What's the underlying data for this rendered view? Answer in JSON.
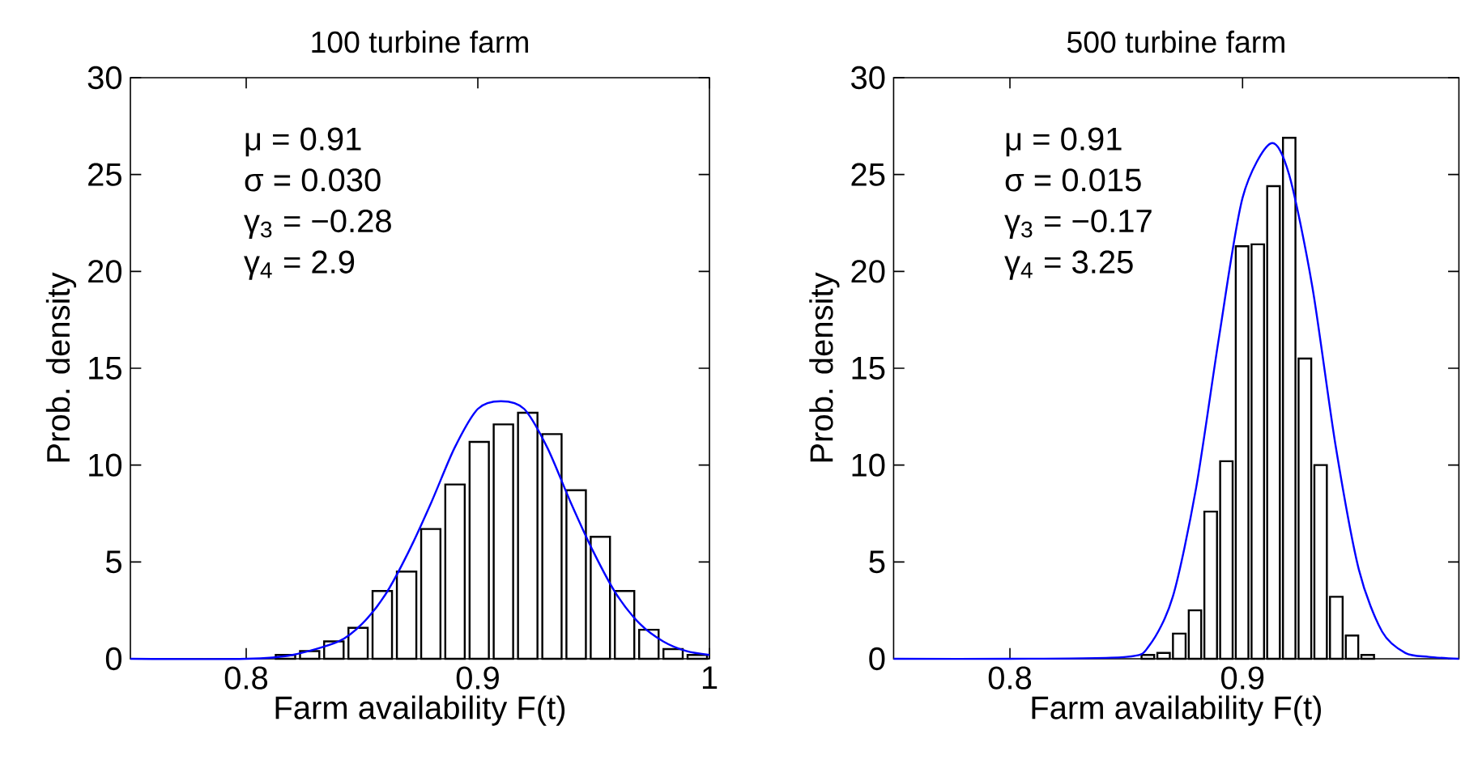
{
  "chart_data": [
    {
      "type": "histogram",
      "title": "100 turbine farm",
      "xlabel": "Farm availability F(t)",
      "ylabel": "Prob. density",
      "color": "#ffffff",
      "bins": [
        0.8117,
        0.8222,
        0.8326,
        0.8431,
        0.8535,
        0.864,
        0.8745,
        0.8849,
        0.8954,
        0.9058,
        0.9163,
        0.9268,
        0.9372,
        0.9477,
        0.9581,
        0.9686,
        0.9791,
        0.9895,
        1.0
      ],
      "values": [
        0.2,
        0.4,
        0.9,
        1.6,
        3.5,
        4.5,
        6.7,
        9.0,
        11.2,
        12.1,
        12.7,
        11.6,
        8.7,
        6.3,
        3.5,
        1.5,
        0.5,
        0.2
      ],
      "series": [
        {
          "type": "line",
          "color": "#0000ff",
          "x": [
            0.75,
            0.8,
            0.82,
            0.84,
            0.85,
            0.86,
            0.87,
            0.88,
            0.89,
            0.9,
            0.91,
            0.92,
            0.93,
            0.94,
            0.95,
            0.96,
            0.97,
            0.98,
            0.99,
            1.0
          ],
          "values": [
            0,
            0,
            0.2,
            0.9,
            1.8,
            3.3,
            5.5,
            8.1,
            10.9,
            12.9,
            13.3,
            12.9,
            10.9,
            8.1,
            5.5,
            3.3,
            1.8,
            0.9,
            0.4,
            0.2
          ]
        }
      ],
      "annotations": [
        "μ = 0.91",
        "σ = 0.030",
        "γ$_{3}$ = −0.28",
        "γ$_{4}$ = 2.9"
      ],
      "xlim": [
        0.75,
        1.0
      ],
      "ylim": [
        0,
        30
      ],
      "xticks": [
        0.8,
        0.9,
        1
      ],
      "yticks": [
        0,
        5,
        10,
        15,
        20,
        25,
        30
      ],
      "grid": false
    },
    {
      "type": "histogram",
      "title": "500 turbine farm",
      "xlabel": "Farm availability F(t)",
      "ylabel": "Prob. density",
      "color": "#ffffff",
      "bins": [
        0.8559,
        0.8627,
        0.8694,
        0.8762,
        0.8829,
        0.8897,
        0.8964,
        0.9032,
        0.9099,
        0.9167,
        0.9234,
        0.9302,
        0.9369,
        0.9437,
        0.9504,
        0.9572
      ],
      "values": [
        0.2,
        0.3,
        1.3,
        2.5,
        7.6,
        10.2,
        21.3,
        21.4,
        24.4,
        26.9,
        15.5,
        10.0,
        3.2,
        1.2,
        0.2
      ],
      "series": [
        {
          "type": "line",
          "color": "#0000ff",
          "x": [
            0.75,
            0.8,
            0.85,
            0.86,
            0.87,
            0.88,
            0.89,
            0.9,
            0.912,
            0.92,
            0.93,
            0.94,
            0.95,
            0.96,
            0.97,
            0.98,
            0.993
          ],
          "values": [
            0,
            0,
            0.1,
            0.7,
            3.2,
            8.8,
            16.7,
            23.8,
            26.6,
            25.0,
            19.2,
            11.0,
            4.6,
            1.4,
            0.3,
            0.1,
            0
          ]
        }
      ],
      "annotations": [
        "μ = 0.91",
        "σ = 0.015",
        "γ$_{3}$ = −0.17",
        "γ$_{4}$ = 3.25"
      ],
      "xlim": [
        0.75,
        0.993
      ],
      "ylim": [
        0,
        30
      ],
      "xticks": [
        0.8,
        0.9
      ],
      "yticks": [
        0,
        5,
        10,
        15,
        20,
        25,
        30
      ],
      "grid": false
    }
  ]
}
